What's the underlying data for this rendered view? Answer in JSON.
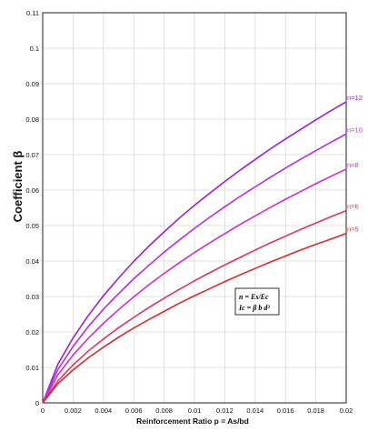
{
  "chart_data": {
    "type": "line",
    "xlabel": "Reinforcement Ratio p = As/bd",
    "ylabel": "Coefficient β",
    "xlim": [
      0,
      0.02
    ],
    "ylim": [
      0,
      0.11
    ],
    "grid": true,
    "x_ticks": [
      "0",
      "0.002",
      "0.004",
      "0.006",
      "0.008",
      "0.01",
      "0.012",
      "0.014",
      "0.016",
      "0.018",
      "0.02"
    ],
    "y_ticks": [
      "0",
      "0.01",
      "0.02",
      "0.03",
      "0.04",
      "0.05",
      "0.06",
      "0.07",
      "0.08",
      "0.09",
      "0.1",
      "0.11"
    ],
    "x": [
      0,
      0.001,
      0.002,
      0.003,
      0.004,
      0.005,
      0.006,
      0.007,
      0.008,
      0.009,
      0.01,
      0.011,
      0.012,
      0.013,
      0.014,
      0.015,
      0.016,
      0.017,
      0.018,
      0.019,
      0.02
    ],
    "series": [
      {
        "name": "n=12",
        "n": 12,
        "color": "#9a1fd8",
        "values": [
          0,
          0.0109,
          0.0183,
          0.0246,
          0.0302,
          0.0352,
          0.0399,
          0.0442,
          0.0482,
          0.0521,
          0.0557,
          0.0591,
          0.0624,
          0.0656,
          0.0686,
          0.0716,
          0.0744,
          0.0771,
          0.0798,
          0.0824,
          0.0849
        ]
      },
      {
        "name": "n=10",
        "n": 10,
        "color": "#b32ee0",
        "values": [
          0,
          0.0094,
          0.0159,
          0.0215,
          0.0264,
          0.0308,
          0.035,
          0.0388,
          0.0425,
          0.0459,
          0.0492,
          0.0523,
          0.0553,
          0.0582,
          0.0609,
          0.0636,
          0.0662,
          0.0687,
          0.0711,
          0.0735,
          0.0758
        ]
      },
      {
        "name": "n=8",
        "n": 8,
        "color": "#d12ec4",
        "values": [
          0,
          0.0079,
          0.0135,
          0.0182,
          0.0224,
          0.0263,
          0.0299,
          0.0333,
          0.0365,
          0.0395,
          0.0424,
          0.0451,
          0.0477,
          0.0503,
          0.0527,
          0.0551,
          0.0574,
          0.0596,
          0.0618,
          0.0639,
          0.0659
        ]
      },
      {
        "name": "n=6",
        "n": 6,
        "color": "#e0355a",
        "values": [
          0,
          0.0062,
          0.0107,
          0.0146,
          0.018,
          0.0212,
          0.0241,
          0.0269,
          0.0295,
          0.032,
          0.0344,
          0.0367,
          0.0389,
          0.041,
          0.0431,
          0.0451,
          0.047,
          0.0489,
          0.0507,
          0.0525,
          0.0542
        ]
      },
      {
        "name": "n=5",
        "n": 5,
        "color": "#dc2a2a",
        "values": [
          0,
          0.0054,
          0.0093,
          0.0127,
          0.0157,
          0.0185,
          0.0211,
          0.0235,
          0.0258,
          0.0281,
          0.0302,
          0.0322,
          0.0342,
          0.0361,
          0.0379,
          0.0397,
          0.0414,
          0.0431,
          0.0447,
          0.0462,
          0.0478
        ]
      }
    ],
    "annotation": {
      "line1": "n = Es/Ec",
      "line2": "Ic = β b d³"
    }
  }
}
